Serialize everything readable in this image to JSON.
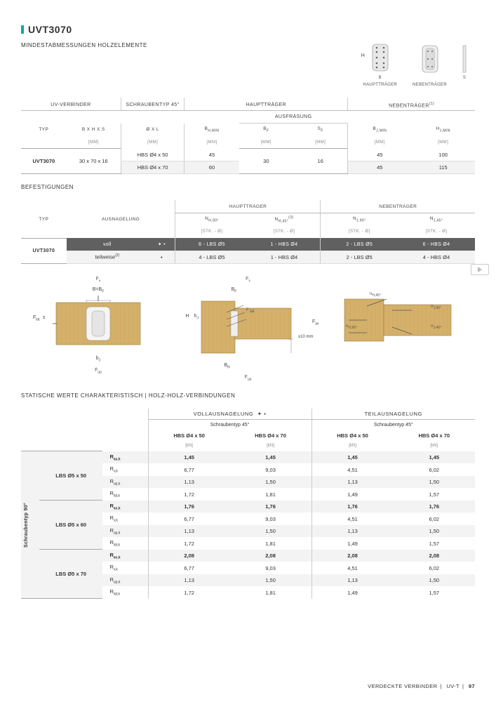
{
  "page": {
    "code": "UVT3070",
    "section1": "MINDESTABMESSUNGEN HOLZELEMENTE",
    "section2": "BEFESTIGUNGEN",
    "section3": "STATISCHE WERTE CHARAKTERISTISCH | HOLZ-HOLZ-VERBINDUNGEN",
    "footer_left": "VERDECKTE VERBINDER",
    "footer_mid": "UV-T",
    "footer_page": "97"
  },
  "topicons": {
    "h": "H",
    "b": "B",
    "cap1": "HAUPTTRÄGER",
    "cap2": "NEBENTRÄGER",
    "cap3": "s"
  },
  "t1": {
    "g1": "UV-VERBINDER",
    "g2": "SCHRAUBENTYP 45°",
    "g3": "HAUPTTRÄGER",
    "g4": "NEBENTRÄGER",
    "sup4": "(1)",
    "ausf": "Ausfräsung",
    "h_typ": "typ",
    "h_bhs": "B x H x s",
    "h_ol": "Ø x L",
    "h_bhmin": "B",
    "h_bhmin_sub": "H,min",
    "h_bf": "B",
    "h_bf_sub": "F",
    "h_sf": "S",
    "h_sf_sub": "F",
    "h_bjmin": "b",
    "h_bjmin_sub": "J,min",
    "h_hjmin": "h",
    "h_hjmin_sub": "J,min",
    "u_mm": "[mm]",
    "row_typ": "UVT3070",
    "row_dim": "30 x 70 x 16",
    "r1_ol": "HBS Ø4 x 50",
    "r1_bh": "45",
    "r_bf": "30",
    "r_sf": "16",
    "r1_bj": "45",
    "r1_hj": "100",
    "r2_ol": "HBS Ø4 x 70",
    "r2_bh": "60",
    "r2_bj": "45",
    "r2_hj": "115"
  },
  "t2": {
    "g_ht": "HAUPTTRÄGER",
    "g_nt": "NEBENTRÄGER",
    "h_typ": "typ",
    "h_aus": "Ausnagelung",
    "h_nh90": "n",
    "h_nh90_sub": "H,90°",
    "h_nh45": "n",
    "h_nh45_sub": "H,45°",
    "h_nh45_sup": "(3)",
    "h_nj90": "n",
    "h_nj90_sub": "J,90°",
    "h_nj45": "n",
    "h_nj45_sub": "J,45°",
    "u_stk": "[Stk. - Ø]",
    "row_typ": "UVT3070",
    "r1_aus": "voll",
    "r1_sym": "✦ •",
    "r1_a": "6 - LBS Ø5",
    "r1_b": "1 - HBS Ø4",
    "r1_c": "2 - LBS Ø5",
    "r1_d": "6 - HBS Ø4",
    "r2_aus": "teilweise",
    "r2_sup": "(2)",
    "r2_sym": "•",
    "r2_a": "4 - LBS Ø5",
    "r2_b": "1 - HBS Ø4",
    "r2_c": "2 - LBS Ø5",
    "r2_d": "4 - HBS Ø4"
  },
  "draw": {
    "fv": "F",
    "fv_sub": "v",
    "flat": "F",
    "flat_sub": "lat",
    "fup": "F",
    "fup_sub": "up",
    "fax": "F",
    "fax_sub": "ax",
    "bbf": "B=B",
    "bbf_sub": "F",
    "bf": "B",
    "bf_sub": "F",
    "bh": "B",
    "bh_sub": "H",
    "bj2": "b",
    "bj2_sub": "J",
    "h": "H",
    "hj": "h",
    "hj_sub": "J",
    "s": "s",
    "ge10": "≥10 mm",
    "nh45": "n",
    "nh45_sub": "H,45°",
    "nj90": "n",
    "nj90_sub": "J,90°",
    "nh90": "n",
    "nh90_sub": "H,90°",
    "nj45": "n",
    "nj45_sub": "J,45°"
  },
  "t3": {
    "voll": "VOLLAUSNAGELUNG",
    "voll_sym": "✦ •",
    "teil": "TEILAUSNAGELUNG",
    "st45a": "Schraubentyp 45°",
    "st45b": "Schraubentyp 45°",
    "c1": "HBS Ø4 x 50",
    "c2": "HBS Ø4 x 70",
    "c3": "HBS Ø4 x 50",
    "c4": "HBS Ø4 x 70",
    "u_kn": "[kN]",
    "sidelabel": "Schraubentyp 90°",
    "rows_labels": [
      "LBS Ø5 x 50",
      "LBS Ø5 x 60",
      "LBS Ø5 x 70"
    ],
    "metrics": {
      "rax": {
        "txt": "R",
        "sub": "ax,k"
      },
      "rv": {
        "txt": "R",
        "sub": "v,k"
      },
      "rup": {
        "txt": "R",
        "sub": "up,k"
      },
      "rlat": {
        "txt": "R",
        "sub": "lat,k"
      }
    },
    "data": {
      "g1": {
        "rax": [
          "1,45",
          "1,45",
          "1,45",
          "1,45"
        ],
        "rv": [
          "6,77",
          "9,03",
          "4,51",
          "6,02"
        ],
        "rup": [
          "1,13",
          "1,50",
          "1,13",
          "1,50"
        ],
        "rlat": [
          "1,72",
          "1,81",
          "1,49",
          "1,57"
        ]
      },
      "g2": {
        "rax": [
          "1,76",
          "1,76",
          "1,76",
          "1,76"
        ],
        "rv": [
          "6,77",
          "9,03",
          "4,51",
          "6,02"
        ],
        "rup": [
          "1,13",
          "1,50",
          "1,13",
          "1,50"
        ],
        "rlat": [
          "1,72",
          "1,81",
          "1,49",
          "1,57"
        ]
      },
      "g3": {
        "rax": [
          "2,08",
          "2,08",
          "2,08",
          "2,08"
        ],
        "rv": [
          "6,77",
          "9,03",
          "4,51",
          "6,02"
        ],
        "rup": [
          "1,13",
          "1,50",
          "1,13",
          "1,50"
        ],
        "rlat": [
          "1,72",
          "1,81",
          "1,49",
          "1,57"
        ]
      }
    }
  },
  "colors": {
    "accent": "#00a9b7",
    "wood": "#d4b06a",
    "wood_dark": "#b08d4b",
    "header_dark": "#606060",
    "row_alt": "#f3f3f3",
    "text": "#333333"
  }
}
